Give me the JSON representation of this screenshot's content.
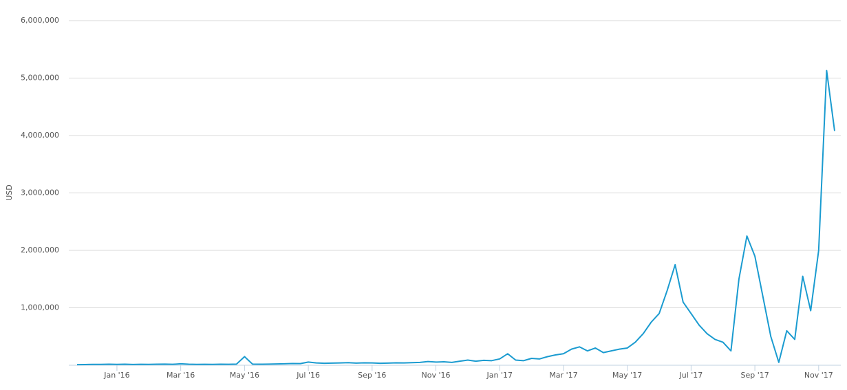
{
  "chart_data": {
    "type": "line",
    "y_label": "USD",
    "color": "#1a9bd0",
    "grid": true,
    "ylim": [
      0,
      6000000
    ],
    "yticks": [
      {
        "value": 1000000,
        "label": "1,000,000"
      },
      {
        "value": 2000000,
        "label": "2,000,000"
      },
      {
        "value": 3000000,
        "label": "3,000,000"
      },
      {
        "value": 4000000,
        "label": "4,000,000"
      },
      {
        "value": 5000000,
        "label": "5,000,000"
      },
      {
        "value": 6000000,
        "label": "6,000,000"
      }
    ],
    "categories": [
      null,
      null,
      null,
      null,
      null,
      "Jan '16",
      null,
      null,
      null,
      null,
      null,
      null,
      null,
      "Mar '16",
      null,
      null,
      null,
      null,
      null,
      null,
      null,
      "May '16",
      null,
      null,
      null,
      null,
      null,
      null,
      null,
      "Jul '16",
      null,
      null,
      null,
      null,
      null,
      null,
      null,
      "Sep '16",
      null,
      null,
      null,
      null,
      null,
      null,
      null,
      "Nov '16",
      null,
      null,
      null,
      null,
      null,
      null,
      null,
      "Jan '17",
      null,
      null,
      null,
      null,
      null,
      null,
      null,
      "Mar '17",
      null,
      null,
      null,
      null,
      null,
      null,
      null,
      "May '17",
      null,
      null,
      null,
      null,
      null,
      null,
      null,
      "Jul '17",
      null,
      null,
      null,
      null,
      null,
      null,
      null,
      "Sep '17",
      null,
      null,
      null,
      null,
      null,
      null,
      null,
      "Nov '17",
      null,
      null
    ],
    "values": [
      10000,
      12000,
      15000,
      15000,
      18000,
      15000,
      18000,
      14000,
      16000,
      15000,
      18000,
      20000,
      16000,
      25000,
      18000,
      15000,
      17000,
      15000,
      18000,
      16000,
      20000,
      150000,
      20000,
      18000,
      20000,
      22000,
      25000,
      30000,
      28000,
      55000,
      40000,
      35000,
      38000,
      40000,
      45000,
      38000,
      42000,
      40000,
      35000,
      38000,
      42000,
      40000,
      45000,
      50000,
      65000,
      55000,
      60000,
      50000,
      70000,
      90000,
      70000,
      85000,
      80000,
      110000,
      200000,
      90000,
      80000,
      120000,
      110000,
      150000,
      180000,
      200000,
      280000,
      320000,
      250000,
      300000,
      220000,
      250000,
      280000,
      300000,
      400000,
      550000,
      750000,
      900000,
      1300000,
      1750000,
      1100000,
      900000,
      700000,
      550000,
      450000,
      400000,
      250000,
      1500000,
      2250000,
      1900000,
      1200000,
      500000,
      50000,
      600000,
      450000,
      1550000,
      950000,
      2000000,
      5130000,
      4080000
    ]
  }
}
